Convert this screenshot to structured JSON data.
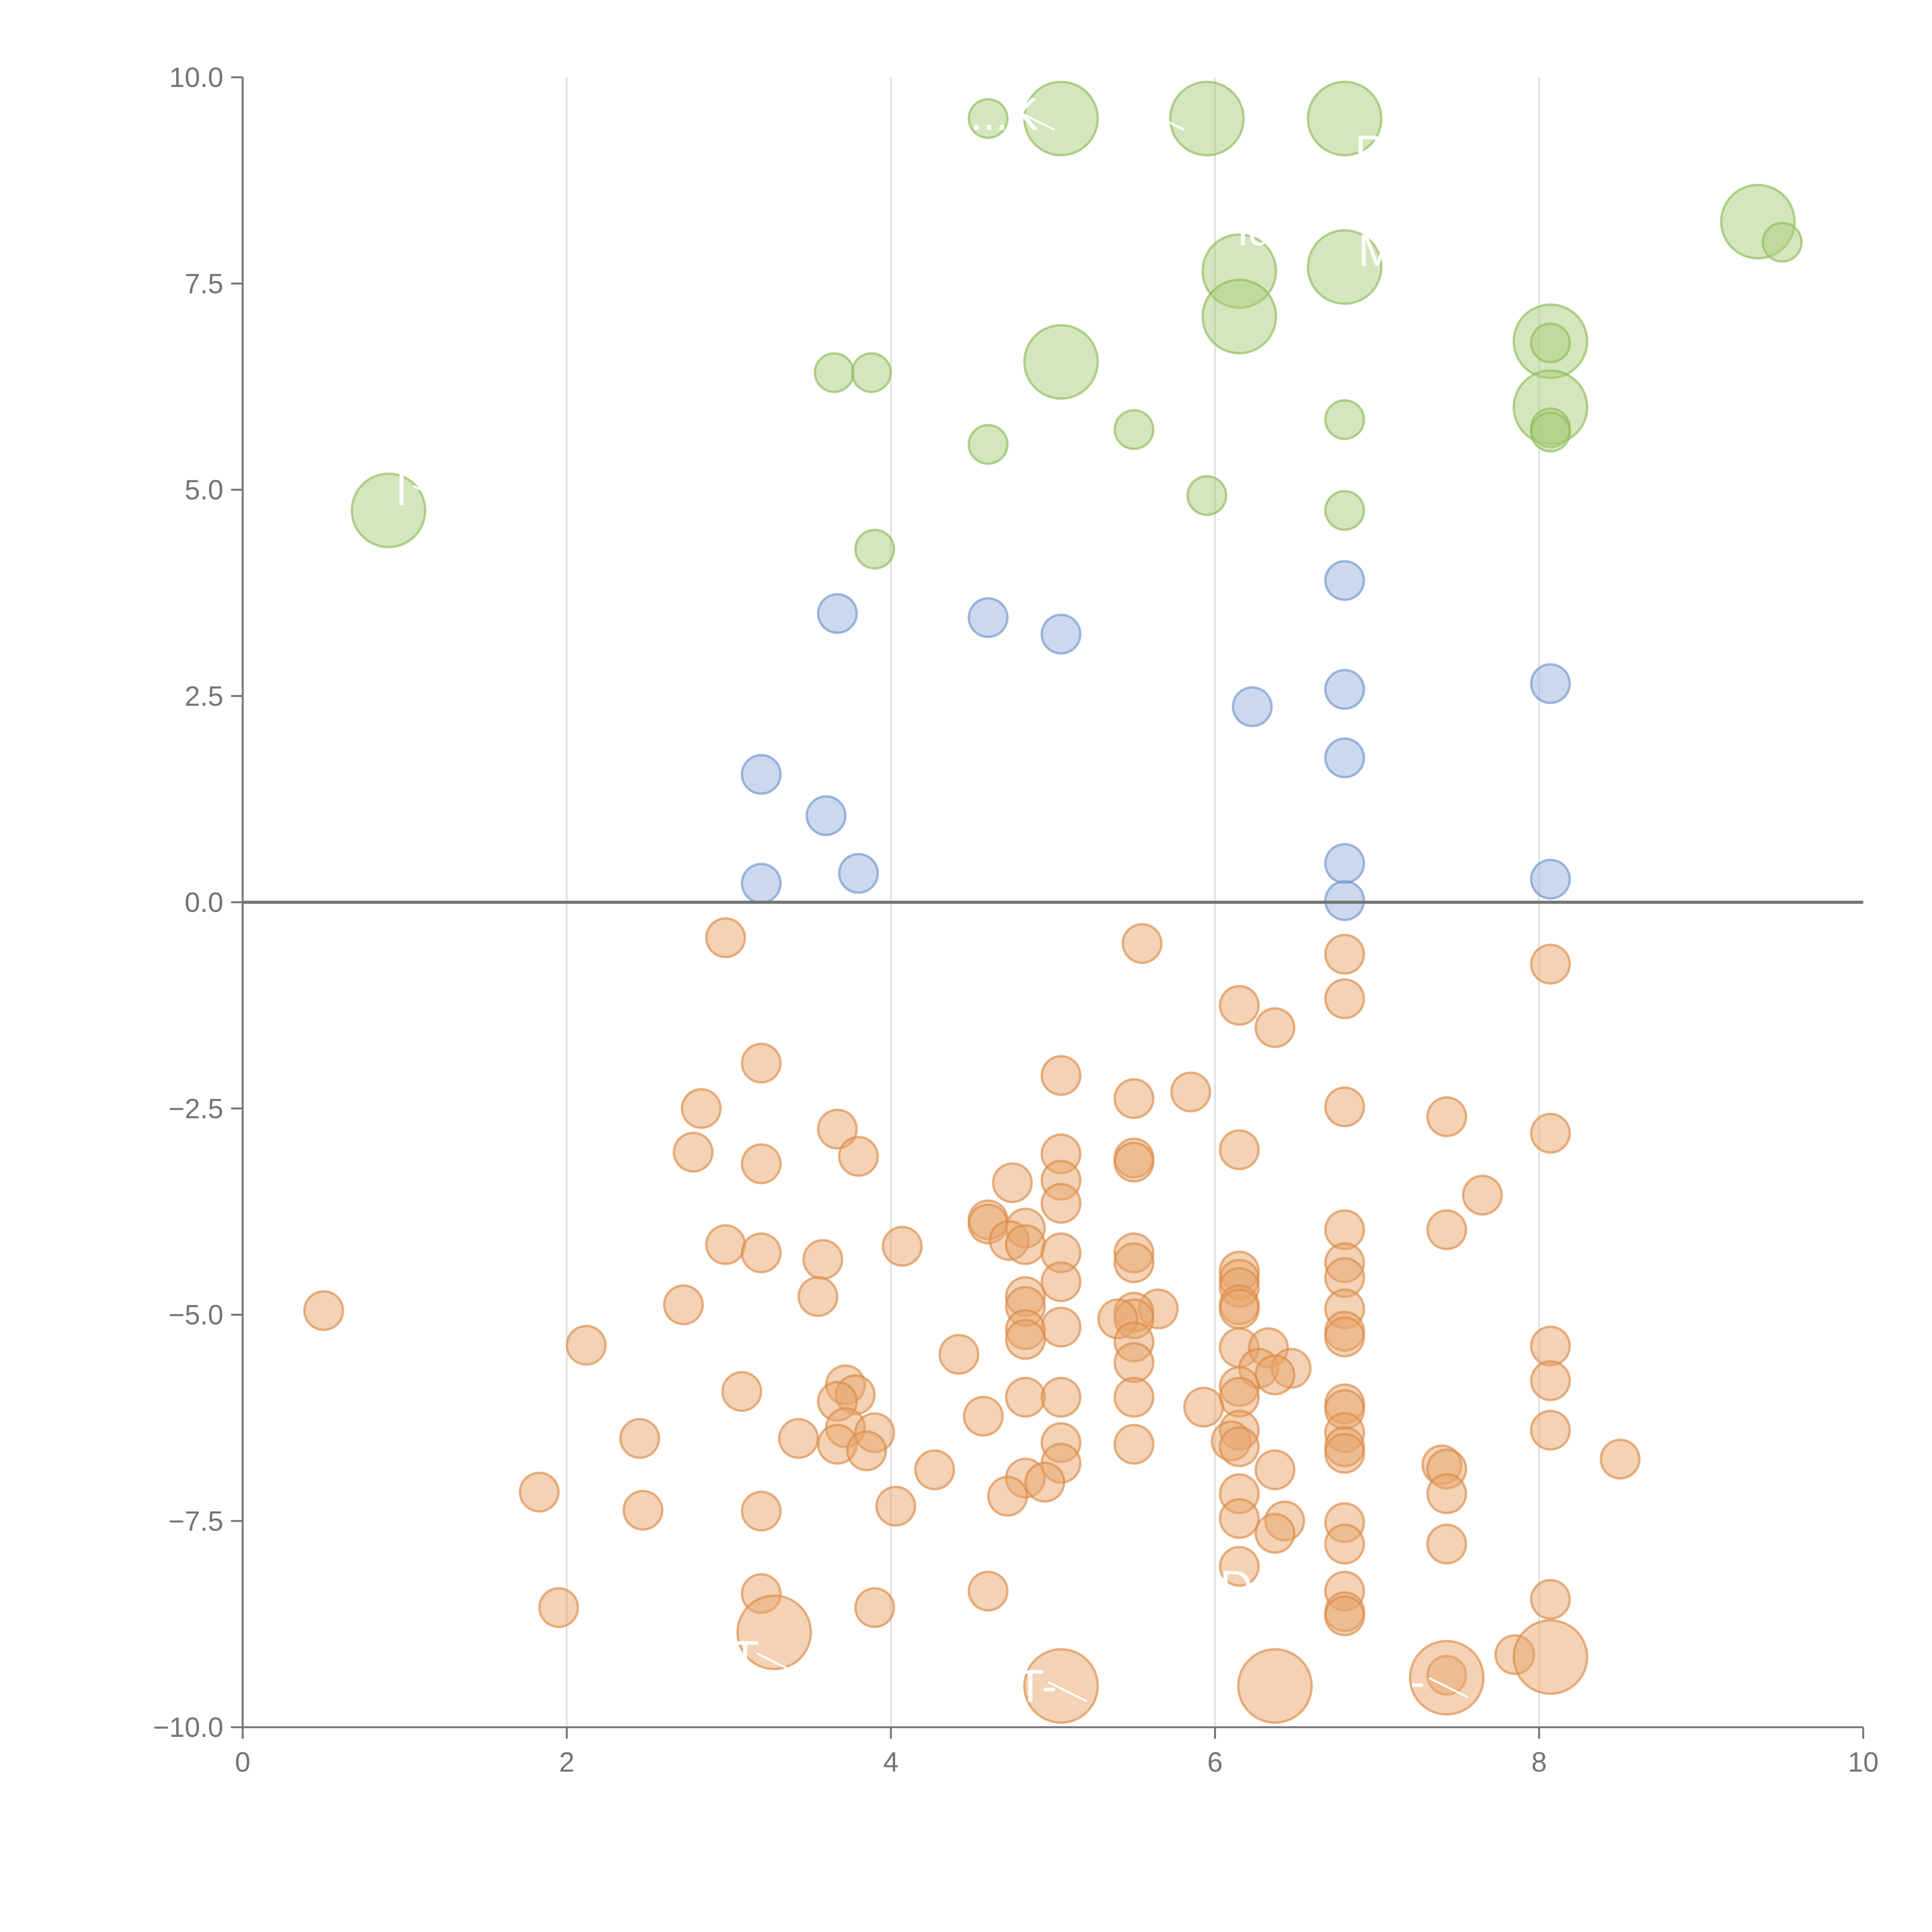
{
  "chart_data": {
    "type": "scatter",
    "title": "",
    "xlabel": "",
    "ylabel": "",
    "xlim": [
      0,
      10
    ],
    "ylim": [
      -10,
      10
    ],
    "x_ticks": [
      0,
      2,
      4,
      6,
      8,
      10
    ],
    "x_tick_labels": [
      "0",
      "2",
      "4",
      "6",
      "8",
      "10"
    ],
    "y_ticks": [
      10,
      7.5,
      5,
      2.5,
      0,
      -2.5,
      -5,
      -7.5,
      -10
    ],
    "y_tick_labels": [
      "10.0",
      "7.5",
      "5.0",
      "2.5",
      "0.0",
      "−2.5",
      "−5.0",
      "−7.5",
      "−10.0"
    ],
    "vertical_gridlines": [
      2,
      4,
      6,
      8
    ],
    "zero_line": 0,
    "colors": {
      "green_fill": "#a9cd7c",
      "green_stroke": "#8dbb59",
      "blue_fill": "#97b2dc",
      "blue_stroke": "#6f93cc",
      "orange_fill": "#e8a56c",
      "orange_stroke": "#dc8a46",
      "axis": "#757575",
      "grid": "#dddddd",
      "label": "#ffffff"
    },
    "series": [
      {
        "name": "green",
        "color_key": "green",
        "points": [
          [
            4.6,
            9.5,
            "s"
          ],
          [
            5.05,
            9.5,
            "l"
          ],
          [
            5.95,
            9.5,
            "l"
          ],
          [
            6.8,
            9.5,
            "l"
          ],
          [
            9.35,
            8.25,
            "l"
          ],
          [
            9.5,
            8.0,
            "s"
          ],
          [
            6.15,
            7.65,
            "l"
          ],
          [
            6.8,
            7.7,
            "l"
          ],
          [
            6.15,
            7.1,
            "l"
          ],
          [
            8.07,
            6.8,
            "l"
          ],
          [
            8.07,
            6.78,
            "s"
          ],
          [
            3.65,
            6.42,
            "s"
          ],
          [
            3.88,
            6.42,
            "s"
          ],
          [
            5.05,
            6.55,
            "l"
          ],
          [
            8.07,
            6.0,
            "l"
          ],
          [
            8.07,
            5.75,
            "s"
          ],
          [
            8.07,
            5.7,
            "s"
          ],
          [
            6.8,
            5.85,
            "s"
          ],
          [
            5.5,
            5.73,
            "s"
          ],
          [
            4.6,
            5.55,
            "s"
          ],
          [
            5.95,
            4.93,
            "s"
          ],
          [
            6.8,
            4.75,
            "s"
          ],
          [
            0.9,
            4.75,
            "l"
          ],
          [
            3.9,
            4.28,
            "s"
          ]
        ]
      },
      {
        "name": "blue",
        "color_key": "blue",
        "points": [
          [
            6.8,
            3.9
          ],
          [
            3.67,
            3.5
          ],
          [
            4.6,
            3.45
          ],
          [
            5.05,
            3.25
          ],
          [
            8.07,
            2.65
          ],
          [
            6.8,
            2.58
          ],
          [
            6.23,
            2.37
          ],
          [
            6.8,
            1.75
          ],
          [
            3.2,
            1.55
          ],
          [
            3.6,
            1.05
          ],
          [
            6.8,
            0.47
          ],
          [
            3.8,
            0.35
          ],
          [
            8.07,
            0.28
          ],
          [
            3.2,
            0.23
          ],
          [
            6.8,
            0.02
          ]
        ]
      },
      {
        "name": "orange",
        "color_key": "orange",
        "points": [
          [
            2.98,
            -0.43
          ],
          [
            5.55,
            -0.5
          ],
          [
            6.8,
            -0.63
          ],
          [
            8.07,
            -0.75
          ],
          [
            6.8,
            -1.17
          ],
          [
            6.15,
            -1.25
          ],
          [
            6.37,
            -1.52
          ],
          [
            3.2,
            -1.95
          ],
          [
            5.05,
            -2.1
          ],
          [
            5.85,
            -2.3
          ],
          [
            5.5,
            -2.38
          ],
          [
            2.83,
            -2.5
          ],
          [
            6.8,
            -2.48
          ],
          [
            7.43,
            -2.6
          ],
          [
            3.67,
            -2.75
          ],
          [
            8.07,
            -2.8
          ],
          [
            2.78,
            -3.03
          ],
          [
            3.8,
            -3.08
          ],
          [
            5.05,
            -3.05
          ],
          [
            6.15,
            -3.0
          ],
          [
            3.2,
            -3.17
          ],
          [
            5.5,
            -3.1
          ],
          [
            5.5,
            -3.15
          ],
          [
            5.05,
            -3.37
          ],
          [
            4.75,
            -3.4
          ],
          [
            7.65,
            -3.55
          ],
          [
            5.05,
            -3.65
          ],
          [
            4.6,
            -3.85
          ],
          [
            4.6,
            -3.9
          ],
          [
            4.83,
            -3.95
          ],
          [
            6.8,
            -3.97
          ],
          [
            7.43,
            -3.97
          ],
          [
            2.98,
            -4.15
          ],
          [
            4.07,
            -4.17
          ],
          [
            4.73,
            -4.1
          ],
          [
            4.83,
            -4.15
          ],
          [
            3.2,
            -4.25
          ],
          [
            5.05,
            -4.25
          ],
          [
            5.5,
            -4.25
          ],
          [
            3.58,
            -4.33
          ],
          [
            5.5,
            -4.37
          ],
          [
            6.8,
            -4.37
          ],
          [
            6.15,
            -4.47
          ],
          [
            6.15,
            -4.57
          ],
          [
            6.8,
            -4.55
          ],
          [
            5.05,
            -4.6
          ],
          [
            6.15,
            -4.67
          ],
          [
            3.55,
            -4.78
          ],
          [
            4.83,
            -4.78
          ],
          [
            4.83,
            -4.9
          ],
          [
            2.72,
            -4.88
          ],
          [
            6.15,
            -4.88
          ],
          [
            6.8,
            -4.93
          ],
          [
            5.65,
            -4.93
          ],
          [
            0.5,
            -4.95
          ],
          [
            5.5,
            -4.97
          ],
          [
            6.15,
            -4.93
          ],
          [
            5.5,
            -5.05
          ],
          [
            5.4,
            -5.05
          ],
          [
            5.05,
            -5.15
          ],
          [
            4.83,
            -5.18
          ],
          [
            6.8,
            -5.2
          ],
          [
            6.8,
            -5.27
          ],
          [
            4.83,
            -5.3
          ],
          [
            5.5,
            -5.33
          ],
          [
            2.12,
            -5.37
          ],
          [
            8.07,
            -5.38
          ],
          [
            6.15,
            -5.4
          ],
          [
            6.33,
            -5.4
          ],
          [
            4.42,
            -5.48
          ],
          [
            5.5,
            -5.58
          ],
          [
            6.27,
            -5.65
          ],
          [
            6.47,
            -5.65
          ],
          [
            6.37,
            -5.73
          ],
          [
            8.07,
            -5.8
          ],
          [
            3.72,
            -5.85
          ],
          [
            6.15,
            -5.87
          ],
          [
            3.08,
            -5.93
          ],
          [
            3.78,
            -5.97
          ],
          [
            4.83,
            -6.0
          ],
          [
            5.05,
            -6.0
          ],
          [
            5.5,
            -6.0
          ],
          [
            6.15,
            -6.0
          ],
          [
            3.67,
            -6.05
          ],
          [
            6.8,
            -6.08
          ],
          [
            5.93,
            -6.12
          ],
          [
            6.8,
            -6.15
          ],
          [
            4.57,
            -6.23
          ],
          [
            3.72,
            -6.37
          ],
          [
            6.15,
            -6.4
          ],
          [
            8.07,
            -6.4
          ],
          [
            3.9,
            -6.43
          ],
          [
            6.8,
            -6.43
          ],
          [
            2.45,
            -6.5
          ],
          [
            3.43,
            -6.5
          ],
          [
            6.1,
            -6.53
          ],
          [
            6.15,
            -6.6
          ],
          [
            5.05,
            -6.55
          ],
          [
            5.5,
            -6.57
          ],
          [
            3.67,
            -6.57
          ],
          [
            6.8,
            -6.6
          ],
          [
            3.85,
            -6.65
          ],
          [
            6.8,
            -6.68
          ],
          [
            8.5,
            -6.75
          ],
          [
            5.05,
            -6.8
          ],
          [
            7.4,
            -6.82
          ],
          [
            7.43,
            -6.87
          ],
          [
            4.27,
            -6.88
          ],
          [
            6.37,
            -6.88
          ],
          [
            4.83,
            -6.98
          ],
          [
            4.95,
            -7.03
          ],
          [
            1.83,
            -7.15
          ],
          [
            6.15,
            -7.17
          ],
          [
            7.43,
            -7.17
          ],
          [
            4.72,
            -7.2
          ],
          [
            4.03,
            -7.32
          ],
          [
            2.47,
            -7.37
          ],
          [
            3.2,
            -7.38
          ],
          [
            6.15,
            -7.47
          ],
          [
            6.43,
            -7.5
          ],
          [
            6.8,
            -7.52
          ],
          [
            6.37,
            -7.65
          ],
          [
            6.8,
            -7.78
          ],
          [
            7.43,
            -7.78
          ],
          [
            6.15,
            -8.05
          ],
          [
            6.8,
            -8.35
          ],
          [
            3.2,
            -8.38
          ],
          [
            4.6,
            -8.35
          ],
          [
            8.07,
            -8.45
          ],
          [
            1.95,
            -8.55
          ],
          [
            3.9,
            -8.55
          ],
          [
            6.8,
            -8.6
          ],
          [
            6.8,
            -8.65
          ],
          [
            3.28,
            -8.85,
            "l"
          ],
          [
            7.85,
            -9.12
          ],
          [
            8.07,
            -9.15,
            "l"
          ],
          [
            7.43,
            -9.37
          ],
          [
            7.43,
            -9.4,
            "l"
          ],
          [
            5.05,
            -9.5,
            "l"
          ],
          [
            6.37,
            -9.5,
            "l"
          ]
        ]
      }
    ],
    "point_labels": [
      {
        "text": "...K",
        "x": 4.7,
        "y": 9.55
      },
      {
        "text": "...",
        "x": 5.5,
        "y": 9.55
      },
      {
        "text": "PP",
        "x": 7.05,
        "y": 9.1
      },
      {
        "text": "...",
        "x": 4.1,
        "y": 8.3
      },
      {
        "text": "ld",
        "x": 6.25,
        "y": 8.15
      },
      {
        "text": "M",
        "x": 7.0,
        "y": 7.9
      },
      {
        "text": "l",
        "x": 0.98,
        "y": 5.0
      },
      {
        "text": "D",
        "x": 6.13,
        "y": -8.3
      },
      {
        "text": "T",
        "x": 3.1,
        "y": -9.15
      },
      {
        "text": "T-",
        "x": 4.9,
        "y": -9.5
      },
      {
        "text": "-",
        "x": 7.25,
        "y": -9.45
      }
    ]
  }
}
